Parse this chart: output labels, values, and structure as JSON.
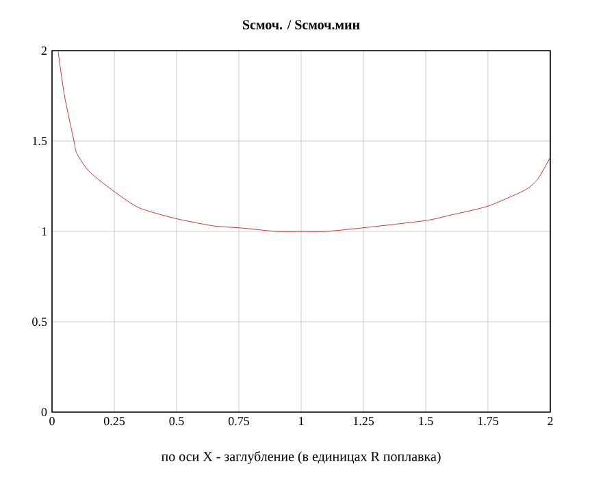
{
  "chart_data": {
    "type": "line",
    "title": "Sсмоч. / Sсмоч.мин",
    "xlabel": "по оси X - заглубление (в единицах R поплавка)",
    "xlim": [
      0,
      2
    ],
    "ylim": [
      0,
      2
    ],
    "xticks": [
      0,
      0.25,
      0.5,
      0.75,
      1,
      1.25,
      1.5,
      1.75,
      2
    ],
    "yticks": [
      0,
      0.5,
      1,
      1.5,
      2
    ],
    "grid": true,
    "marker": "none",
    "line_style": "solid",
    "series": [
      {
        "color": "#c00000",
        "x": [
          0.024,
          0.05,
          0.088,
          0.1,
          0.15,
          0.25,
          0.35,
          0.5,
          0.65,
          0.75,
          0.9,
          1.0,
          1.1,
          1.25,
          1.5,
          1.6,
          1.75,
          1.9,
          1.95,
          2.0
        ],
        "values": [
          2.0,
          1.75,
          1.5,
          1.43,
          1.33,
          1.22,
          1.13,
          1.07,
          1.03,
          1.02,
          1.0,
          1.0,
          1.0,
          1.02,
          1.06,
          1.09,
          1.14,
          1.23,
          1.29,
          1.41
        ]
      }
    ]
  }
}
